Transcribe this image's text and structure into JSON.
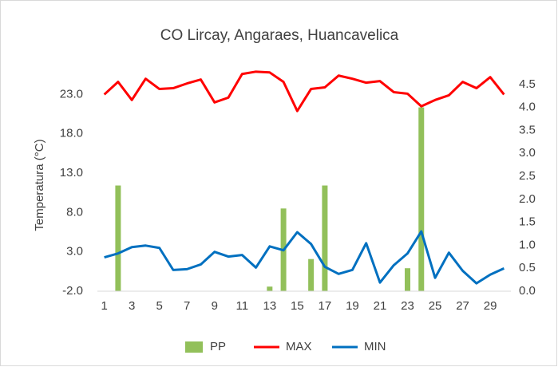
{
  "chart_data": {
    "type": "bar_line",
    "title": "CO Lircay, Angaraes, Huancavelica",
    "ylabel": "Temperatura  (°C)",
    "categories": [
      1,
      null,
      3,
      null,
      5,
      null,
      7,
      null,
      9,
      null,
      11,
      null,
      13,
      null,
      15,
      null,
      17,
      null,
      19,
      null,
      21,
      null,
      23,
      null,
      25,
      null,
      27,
      null,
      29,
      null
    ],
    "series": [
      {
        "name": "PP",
        "type": "bar",
        "axis": "y2",
        "color": "#92c05a",
        "values": [
          0,
          2.3,
          0,
          0,
          0,
          0,
          0,
          0,
          0,
          0,
          0,
          0,
          0.1,
          1.8,
          0,
          0.7,
          2.3,
          0,
          0,
          0,
          0,
          0,
          0.5,
          4.0,
          0,
          0,
          0,
          0,
          0,
          0
        ]
      },
      {
        "name": "MAX",
        "type": "line",
        "color": "#ff0000",
        "values": [
          23.0,
          24.6,
          22.3,
          25.0,
          23.7,
          23.8,
          24.4,
          24.9,
          22.0,
          22.6,
          25.6,
          25.9,
          25.8,
          24.6,
          20.9,
          23.7,
          23.9,
          25.4,
          25.0,
          24.5,
          24.7,
          23.3,
          23.1,
          21.5,
          22.3,
          22.9,
          24.6,
          23.8,
          25.2,
          23.0
        ]
      },
      {
        "name": "MIN",
        "type": "line",
        "color": "#0070c0",
        "values": [
          2.3,
          2.8,
          3.6,
          3.8,
          3.5,
          0.7,
          0.8,
          1.4,
          3.0,
          2.4,
          2.6,
          1.0,
          3.7,
          3.2,
          5.5,
          4.0,
          1.1,
          0.2,
          0.7,
          4.1,
          -0.9,
          1.3,
          2.8,
          5.6,
          -0.3,
          2.9,
          0.6,
          -1.0,
          0.1,
          0.9
        ]
      }
    ],
    "ylim": [
      -2,
      27.2
    ],
    "yticks": [
      {
        "value": -2,
        "label": "-2.0"
      },
      {
        "value": 3,
        "label": "3.0"
      },
      {
        "value": 8,
        "label": "8.0"
      },
      {
        "value": 13,
        "label": "13.0"
      },
      {
        "value": 18,
        "label": "18.0"
      },
      {
        "value": 23,
        "label": "23.0"
      }
    ],
    "y2lim": [
      0,
      5
    ],
    "y2ticks": [
      {
        "value": 0,
        "label": "0.0"
      },
      {
        "value": 0.5,
        "label": "0.5"
      },
      {
        "value": 1,
        "label": "1.0"
      },
      {
        "value": 1.5,
        "label": "1.5"
      },
      {
        "value": 2,
        "label": "2.0"
      },
      {
        "value": 2.5,
        "label": "2.5"
      },
      {
        "value": 3,
        "label": "3.0"
      },
      {
        "value": 3.5,
        "label": "3.5"
      },
      {
        "value": 4,
        "label": "4.0"
      },
      {
        "value": 4.5,
        "label": "4.5"
      }
    ],
    "legend": "bottom"
  }
}
